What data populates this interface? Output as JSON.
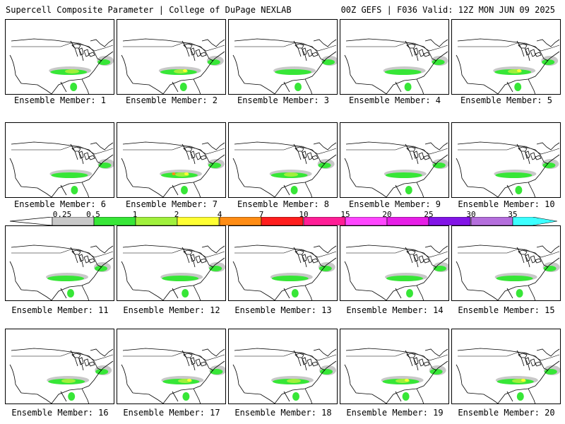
{
  "header": {
    "left_title": "Supercell Composite Parameter | College of DuPage NEXLAB",
    "right_title": "00Z GEFS | F036 Valid: 12Z MON JUN 09 2025"
  },
  "colorbar": {
    "labels": [
      "0.25",
      "0.5",
      "1",
      "2",
      "4",
      "7",
      "10",
      "15",
      "20",
      "25",
      "30",
      "35"
    ],
    "colors": [
      "#c8c8c8",
      "#37e637",
      "#a0f03c",
      "#ffff32",
      "#ff8c14",
      "#ff1e1e",
      "#ff1e96",
      "#ff46ff",
      "#e61ee6",
      "#8214e6",
      "#b46edc",
      "#3cffff"
    ]
  },
  "members": [
    {
      "label": "Ensemble Member: 1"
    },
    {
      "label": "Ensemble Member: 2"
    },
    {
      "label": "Ensemble Member: 3"
    },
    {
      "label": "Ensemble Member: 4"
    },
    {
      "label": "Ensemble Member: 5"
    },
    {
      "label": "Ensemble Member: 6"
    },
    {
      "label": "Ensemble Member: 7"
    },
    {
      "label": "Ensemble Member: 8"
    },
    {
      "label": "Ensemble Member: 9"
    },
    {
      "label": "Ensemble Member: 10"
    },
    {
      "label": "Ensemble Member: 11"
    },
    {
      "label": "Ensemble Member: 12"
    },
    {
      "label": "Ensemble Member: 13"
    },
    {
      "label": "Ensemble Member: 14"
    },
    {
      "label": "Ensemble Member: 15"
    },
    {
      "label": "Ensemble Member: 16"
    },
    {
      "label": "Ensemble Member: 17"
    },
    {
      "label": "Ensemble Member: 18"
    },
    {
      "label": "Ensemble Member: 19"
    },
    {
      "label": "Ensemble Member: 20"
    }
  ]
}
